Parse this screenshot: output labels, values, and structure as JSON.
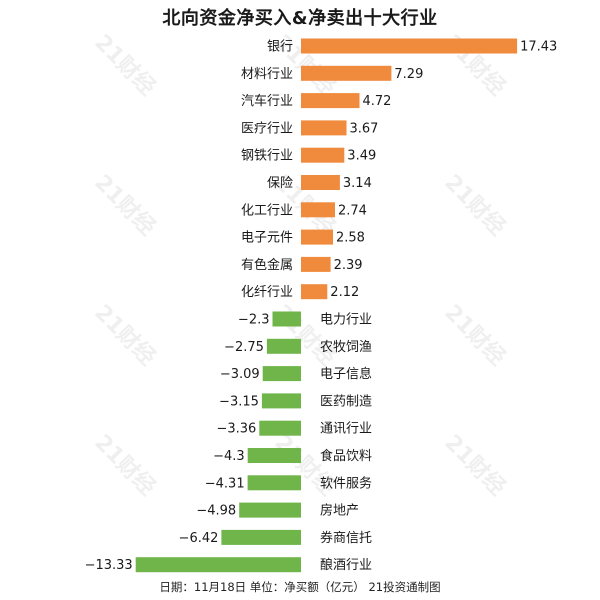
{
  "chart_data": {
    "type": "bar",
    "orientation": "horizontal",
    "title": "北向资金净买入&净卖出十大行业",
    "categories": [
      "银行",
      "材料行业",
      "汽车行业",
      "医疗行业",
      "钢铁行业",
      "保险",
      "化工行业",
      "电子元件",
      "有色金属",
      "化纤行业",
      "电力行业",
      "农牧饲渔",
      "电子信息",
      "医药制造",
      "通讯行业",
      "食品饮料",
      "软件服务",
      "房地产",
      "券商信托",
      "酿酒行业"
    ],
    "values": [
      17.43,
      7.29,
      4.72,
      3.67,
      3.49,
      3.14,
      2.74,
      2.58,
      2.39,
      2.12,
      -2.3,
      -2.75,
      -3.09,
      -3.15,
      -3.36,
      -4.3,
      -4.31,
      -4.98,
      -6.42,
      -13.33
    ],
    "value_labels": [
      "17.43",
      "7.29",
      "4.72",
      "3.67",
      "3.49",
      "3.14",
      "2.74",
      "2.58",
      "2.39",
      "2.12",
      "−2.3",
      "−2.75",
      "−3.09",
      "−3.15",
      "−3.36",
      "−4.3",
      "−4.31",
      "−4.98",
      "−6.42",
      "−13.33"
    ],
    "colors": {
      "positive": "#F08A3C",
      "negative": "#6FB54A"
    },
    "footer": "日期：11月18日 单位：净买额（亿元） 21投资通制图",
    "watermark": "21财经"
  }
}
